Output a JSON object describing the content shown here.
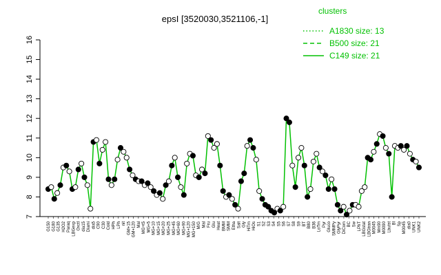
{
  "chart_data": {
    "type": "line",
    "title": "epsI [3520030,3521106,-1]",
    "xlabel": "",
    "ylabel": "",
    "ylim": [
      7,
      16
    ],
    "yticks": [
      7,
      8,
      9,
      10,
      11,
      12,
      13,
      14,
      15,
      16
    ],
    "grid": false,
    "legend": {
      "title": "clusters",
      "placement": "top-right",
      "color": "#00c000",
      "entries": [
        {
          "label": "A1830 size: 13",
          "style": "dotted"
        },
        {
          "label": "B500 size: 21",
          "style": "dashed"
        },
        {
          "label": "C149 size: 21",
          "style": "solid"
        }
      ]
    },
    "x_tick_labels": [
      "G150",
      "G180",
      "G135",
      "H2O2",
      "Paraq",
      "LBGexp",
      "Oxctl",
      "dia15",
      "Diami",
      "dia5",
      "C90",
      "C30",
      "Cold",
      "HPh",
      "LPh",
      "nit",
      "GM+15",
      "GM+120",
      "Mal",
      "MG+t5",
      "MG+5",
      "MG+10",
      "MG+15",
      "MG+20",
      "MG+25",
      "MG+45",
      "MG+60",
      "MG+90",
      "MG+120",
      "MG+150",
      "M/G",
      "Mal",
      "Fru",
      "Glu",
      "Heat",
      "BMM",
      "SMM",
      "Etha",
      "Salt",
      "Gly",
      "HiTm",
      "HiOs",
      "S1",
      "S2",
      "S3",
      "S4",
      "S5",
      "S6",
      "S7",
      "S8",
      "S9",
      "BT",
      "B80",
      "B36",
      "LoTm",
      "Pyr",
      "Gluco",
      "SMMPy",
      "GlyPyr",
      "DiCom",
      "BC",
      "Sw",
      "LPhT",
      "LBGstat",
      "LBGtran",
      "M0045",
      "Mm90",
      "M0090",
      "Lbutst",
      "Bl",
      "Sp",
      "M0045",
      "dia0",
      "UNK1",
      "UNK2"
    ],
    "series": [
      {
        "style": "solid",
        "color": "#00c000",
        "values": [
          8.4,
          8.5,
          7.9,
          8.2,
          8.6,
          9.5,
          9.6,
          9.3,
          8.4,
          8.5,
          9.4,
          9.7,
          9.0,
          8.6,
          7.4,
          10.8,
          10.9,
          9.7,
          10.4,
          10.8,
          8.9,
          8.6,
          8.9,
          9.9,
          10.5,
          10.3,
          10.0,
          9.4,
          9.1,
          8.9,
          8.8,
          8.8,
          8.6,
          8.7,
          8.5,
          8.3,
          8.1,
          8.2,
          7.9,
          8.6,
          8.8,
          9.6,
          10.0,
          9.0,
          8.5,
          8.1,
          9.7,
          10.2,
          10.1,
          9.1,
          9.0,
          9.4,
          9.2,
          11.1,
          10.9,
          10.5,
          10.7,
          9.6,
          8.3,
          8.0,
          8.1,
          7.9,
          7.6,
          7.4,
          8.8,
          9.2,
          10.6,
          10.9,
          10.5,
          9.9,
          8.3,
          7.9,
          7.6,
          7.5,
          7.3,
          7.2,
          7.4,
          7.3,
          7.5,
          12.0,
          11.8,
          9.6,
          8.5,
          10.0,
          10.5,
          9.6,
          8.0,
          8.4,
          9.8,
          10.2,
          9.5,
          9.3,
          9.1,
          8.4,
          8.9,
          8.4,
          7.6,
          7.3,
          7.5,
          7.1,
          7.3,
          7.6,
          7.6,
          7.5,
          8.3,
          8.5,
          10.0,
          9.9,
          10.3,
          10.7,
          11.2,
          11.1,
          10.5,
          10.2,
          8.0,
          10.6,
          10.5,
          10.6,
          10.4,
          10.6,
          10.2,
          9.9,
          9.8,
          9.5
        ]
      }
    ],
    "points": [
      {
        "y": 8.4,
        "f": 1
      },
      {
        "y": 8.5,
        "f": 0
      },
      {
        "y": 7.9,
        "f": 1
      },
      {
        "y": 8.2,
        "f": 0
      },
      {
        "y": 8.6,
        "f": 1
      },
      {
        "y": 9.5,
        "f": 0
      },
      {
        "y": 9.6,
        "f": 1
      },
      {
        "y": 9.3,
        "f": 0
      },
      {
        "y": 8.4,
        "f": 1
      },
      {
        "y": 8.5,
        "f": 0
      },
      {
        "y": 9.4,
        "f": 1
      },
      {
        "y": 9.7,
        "f": 0
      },
      {
        "y": 9.0,
        "f": 1
      },
      {
        "y": 8.6,
        "f": 0
      },
      {
        "y": 7.4,
        "f": 0
      },
      {
        "y": 10.8,
        "f": 1
      },
      {
        "y": 10.9,
        "f": 0
      },
      {
        "y": 9.7,
        "f": 1
      },
      {
        "y": 10.4,
        "f": 0
      },
      {
        "y": 10.8,
        "f": 0
      },
      {
        "y": 8.9,
        "f": 1
      },
      {
        "y": 8.6,
        "f": 0
      },
      {
        "y": 8.9,
        "f": 1
      },
      {
        "y": 9.9,
        "f": 0
      },
      {
        "y": 10.5,
        "f": 1
      },
      {
        "y": 10.3,
        "f": 0
      },
      {
        "y": 10.0,
        "f": 0
      },
      {
        "y": 9.4,
        "f": 1
      },
      {
        "y": 9.1,
        "f": 0
      },
      {
        "y": 8.9,
        "f": 1
      },
      {
        "y": 8.8,
        "f": 0
      },
      {
        "y": 8.8,
        "f": 1
      },
      {
        "y": 8.6,
        "f": 0
      },
      {
        "y": 8.7,
        "f": 1
      },
      {
        "y": 8.5,
        "f": 0
      },
      {
        "y": 8.3,
        "f": 1
      },
      {
        "y": 8.1,
        "f": 0
      },
      {
        "y": 8.2,
        "f": 1
      },
      {
        "y": 7.9,
        "f": 0
      },
      {
        "y": 8.6,
        "f": 1
      },
      {
        "y": 8.8,
        "f": 0
      },
      {
        "y": 9.6,
        "f": 1
      },
      {
        "y": 10.0,
        "f": 0
      },
      {
        "y": 9.0,
        "f": 1
      },
      {
        "y": 8.5,
        "f": 0
      },
      {
        "y": 8.1,
        "f": 1
      },
      {
        "y": 9.7,
        "f": 0
      },
      {
        "y": 10.2,
        "f": 0
      },
      {
        "y": 10.1,
        "f": 1
      },
      {
        "y": 9.1,
        "f": 0
      },
      {
        "y": 9.0,
        "f": 1
      },
      {
        "y": 9.4,
        "f": 0
      },
      {
        "y": 9.2,
        "f": 1
      },
      {
        "y": 11.1,
        "f": 0
      },
      {
        "y": 10.9,
        "f": 1
      },
      {
        "y": 10.5,
        "f": 0
      },
      {
        "y": 10.7,
        "f": 0
      },
      {
        "y": 9.6,
        "f": 1
      },
      {
        "y": 8.3,
        "f": 1
      },
      {
        "y": 8.0,
        "f": 0
      },
      {
        "y": 8.1,
        "f": 1
      },
      {
        "y": 7.9,
        "f": 0
      },
      {
        "y": 7.6,
        "f": 1
      },
      {
        "y": 7.4,
        "f": 0
      },
      {
        "y": 8.8,
        "f": 1
      },
      {
        "y": 9.2,
        "f": 1
      },
      {
        "y": 10.6,
        "f": 0
      },
      {
        "y": 10.9,
        "f": 1
      },
      {
        "y": 10.5,
        "f": 1
      },
      {
        "y": 9.9,
        "f": 0
      },
      {
        "y": 8.3,
        "f": 0
      },
      {
        "y": 7.9,
        "f": 1
      },
      {
        "y": 7.6,
        "f": 1
      },
      {
        "y": 7.5,
        "f": 1
      },
      {
        "y": 7.3,
        "f": 1
      },
      {
        "y": 7.2,
        "f": 1
      },
      {
        "y": 7.4,
        "f": 0
      },
      {
        "y": 7.3,
        "f": 1
      },
      {
        "y": 7.5,
        "f": 0
      },
      {
        "y": 12.0,
        "f": 1
      },
      {
        "y": 11.8,
        "f": 1
      },
      {
        "y": 9.6,
        "f": 0
      },
      {
        "y": 8.5,
        "f": 1
      },
      {
        "y": 10.0,
        "f": 0
      },
      {
        "y": 10.5,
        "f": 0
      },
      {
        "y": 9.6,
        "f": 1
      },
      {
        "y": 8.0,
        "f": 1
      },
      {
        "y": 8.4,
        "f": 0
      },
      {
        "y": 9.8,
        "f": 0
      },
      {
        "y": 10.2,
        "f": 0
      },
      {
        "y": 9.5,
        "f": 1
      },
      {
        "y": 9.3,
        "f": 0
      },
      {
        "y": 9.1,
        "f": 1
      },
      {
        "y": 8.4,
        "f": 1
      },
      {
        "y": 8.9,
        "f": 0
      },
      {
        "y": 8.4,
        "f": 1
      },
      {
        "y": 7.6,
        "f": 1
      },
      {
        "y": 7.3,
        "f": 1
      },
      {
        "y": 7.5,
        "f": 0
      },
      {
        "y": 7.1,
        "f": 1
      },
      {
        "y": 7.3,
        "f": 0
      },
      {
        "y": 7.6,
        "f": 1
      },
      {
        "y": 7.6,
        "f": 0
      },
      {
        "y": 7.5,
        "f": 0
      },
      {
        "y": 8.3,
        "f": 0
      },
      {
        "y": 8.5,
        "f": 0
      },
      {
        "y": 10.0,
        "f": 1
      },
      {
        "y": 9.9,
        "f": 1
      },
      {
        "y": 10.3,
        "f": 0
      },
      {
        "y": 10.7,
        "f": 1
      },
      {
        "y": 11.2,
        "f": 0
      },
      {
        "y": 11.1,
        "f": 1
      },
      {
        "y": 10.5,
        "f": 0
      },
      {
        "y": 10.2,
        "f": 1
      },
      {
        "y": 8.0,
        "f": 1
      },
      {
        "y": 10.6,
        "f": 0
      },
      {
        "y": 10.5,
        "f": 0
      },
      {
        "y": 10.6,
        "f": 1
      },
      {
        "y": 10.4,
        "f": 0
      },
      {
        "y": 10.6,
        "f": 1
      },
      {
        "y": 10.2,
        "f": 0
      },
      {
        "y": 9.9,
        "f": 1
      },
      {
        "y": 9.8,
        "f": 0
      },
      {
        "y": 9.5,
        "f": 1
      }
    ]
  }
}
